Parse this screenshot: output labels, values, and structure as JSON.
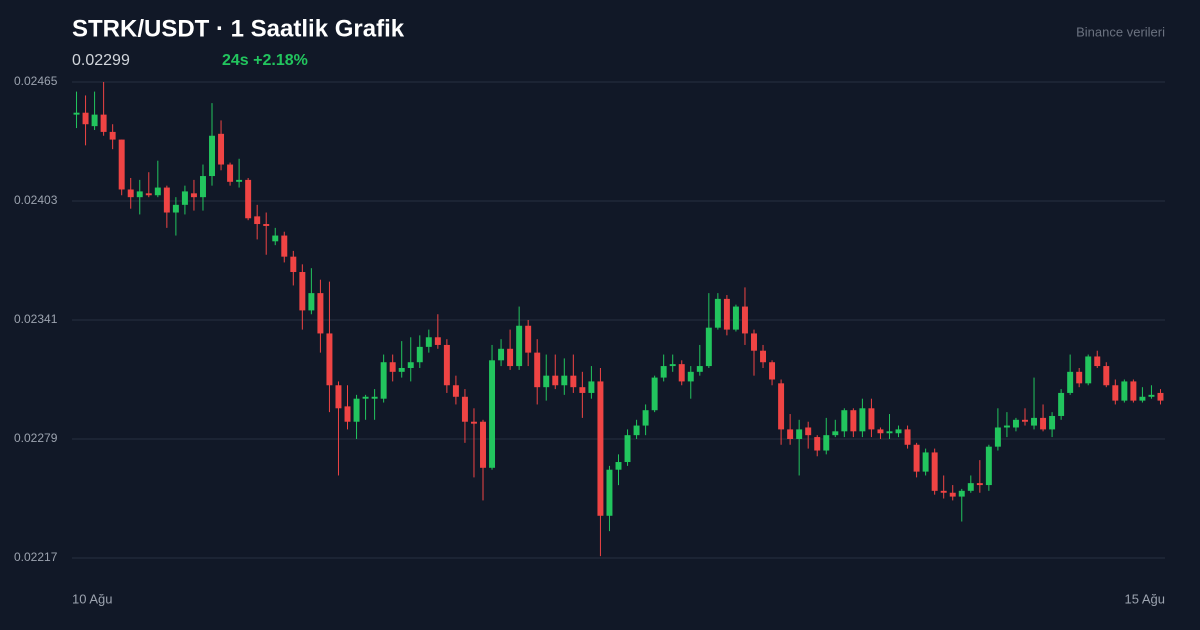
{
  "chart_data": {
    "type": "candlestick",
    "title": "STRK/USDT · 1 Saatlik Grafik",
    "last_price": 0.02299,
    "change_label": "24s +2.18%",
    "source": "Binance verileri",
    "x_labels": [
      "10 Ağu",
      "15 Ağu"
    ],
    "ylim": [
      0.02217,
      0.02465
    ],
    "yticks": [
      0.02465,
      0.02403,
      0.02341,
      0.02279,
      0.02217
    ],
    "grid": true,
    "up_color": "#22c55e",
    "down_color": "#ef4444",
    "open": [
      0.02448,
      0.02449,
      0.02442,
      0.02448,
      0.02439,
      0.02435,
      0.02409,
      0.02405,
      0.02407,
      0.02406,
      0.0241,
      0.02397,
      0.02401,
      0.02407,
      0.02405,
      0.02416,
      0.02438,
      0.02422,
      0.02413,
      0.02414,
      0.02395,
      0.02391,
      0.02382,
      0.02385,
      0.02374,
      0.02366,
      0.02346,
      0.02355,
      0.02334,
      0.02307,
      0.02296,
      0.02288,
      0.023,
      0.023,
      0.023,
      0.02319,
      0.02314,
      0.02316,
      0.02319,
      0.02327,
      0.02332,
      0.02328,
      0.02307,
      0.02301,
      0.02288,
      0.02288,
      0.02264,
      0.0232,
      0.02326,
      0.02317,
      0.02338,
      0.02324,
      0.02306,
      0.02312,
      0.02307,
      0.02312,
      0.02306,
      0.02303,
      0.02309,
      0.02239,
      0.02263,
      0.02267,
      0.02281,
      0.02286,
      0.02294,
      0.02311,
      0.02317,
      0.02318,
      0.02309,
      0.02314,
      0.02317,
      0.02337,
      0.02352,
      0.02336,
      0.02348,
      0.02334,
      0.02325,
      0.02319,
      0.02308,
      0.02284,
      0.02279,
      0.02285,
      0.0228,
      0.02273,
      0.02281,
      0.02283,
      0.02294,
      0.02283,
      0.02295,
      0.02284,
      0.02282,
      0.02282,
      0.02284,
      0.02276,
      0.02262,
      0.02272,
      0.02252,
      0.02251,
      0.02249,
      0.02252,
      0.02256,
      0.02255,
      0.02275,
      0.02285,
      0.02285,
      0.02289,
      0.02286,
      0.0229,
      0.02284,
      0.02291,
      0.02303,
      0.02314,
      0.02308,
      0.02322,
      0.02317,
      0.02307,
      0.02299,
      0.02309,
      0.02299,
      0.02301,
      0.02303
    ],
    "high": [
      0.0246,
      0.02458,
      0.0246,
      0.02465,
      0.02443,
      0.02435,
      0.02415,
      0.02414,
      0.02418,
      0.02424,
      0.02411,
      0.02405,
      0.02411,
      0.02414,
      0.02422,
      0.02454,
      0.02445,
      0.02423,
      0.02425,
      0.02415,
      0.02401,
      0.02397,
      0.02389,
      0.02387,
      0.02377,
      0.0237,
      0.02368,
      0.02362,
      0.02361,
      0.02309,
      0.02307,
      0.02302,
      0.02302,
      0.02305,
      0.02323,
      0.02323,
      0.0233,
      0.02332,
      0.02333,
      0.02336,
      0.02344,
      0.02331,
      0.02312,
      0.02305,
      0.02295,
      0.02289,
      0.02328,
      0.02331,
      0.02336,
      0.02348,
      0.02341,
      0.02331,
      0.02323,
      0.02323,
      0.02321,
      0.02323,
      0.02314,
      0.02317,
      0.02316,
      0.02265,
      0.02271,
      0.02284,
      0.02289,
      0.02297,
      0.02312,
      0.02323,
      0.02323,
      0.0232,
      0.02317,
      0.02328,
      0.02355,
      0.02355,
      0.02354,
      0.02349,
      0.02358,
      0.02336,
      0.02328,
      0.0232,
      0.0231,
      0.02292,
      0.02289,
      0.02288,
      0.02281,
      0.0229,
      0.02289,
      0.02295,
      0.02295,
      0.023,
      0.023,
      0.02285,
      0.02292,
      0.02286,
      0.02286,
      0.02277,
      0.02274,
      0.02274,
      0.0226,
      0.02255,
      0.02253,
      0.0226,
      0.02268,
      0.02276,
      0.02295,
      0.02293,
      0.0229,
      0.02295,
      0.02311,
      0.02297,
      0.02293,
      0.02305,
      0.02323,
      0.02316,
      0.02323,
      0.02325,
      0.02319,
      0.0231,
      0.0231,
      0.0231,
      0.02306,
      0.02307,
      0.02305
    ],
    "low": [
      0.02441,
      0.02432,
      0.0244,
      0.02437,
      0.0243,
      0.02406,
      0.02399,
      0.02396,
      0.02405,
      0.02405,
      0.02389,
      0.02385,
      0.02396,
      0.02398,
      0.02398,
      0.02411,
      0.02419,
      0.02411,
      0.0241,
      0.02393,
      0.02383,
      0.02375,
      0.0238,
      0.02371,
      0.02359,
      0.02336,
      0.02344,
      0.02324,
      0.02293,
      0.0226,
      0.02284,
      0.02279,
      0.02289,
      0.02289,
      0.02298,
      0.02309,
      0.02311,
      0.02309,
      0.02316,
      0.02324,
      0.02326,
      0.02303,
      0.02297,
      0.02277,
      0.02259,
      0.02247,
      0.02263,
      0.02317,
      0.02315,
      0.02315,
      0.02317,
      0.02297,
      0.02299,
      0.02305,
      0.02302,
      0.02303,
      0.0229,
      0.023,
      0.02218,
      0.02231,
      0.02255,
      0.02265,
      0.02279,
      0.02281,
      0.02293,
      0.02309,
      0.02314,
      0.02307,
      0.023,
      0.02312,
      0.02316,
      0.02336,
      0.02333,
      0.02335,
      0.02328,
      0.02312,
      0.02316,
      0.02307,
      0.02276,
      0.02276,
      0.0226,
      0.02274,
      0.0227,
      0.02271,
      0.0228,
      0.0228,
      0.0228,
      0.0228,
      0.0228,
      0.02279,
      0.02279,
      0.0228,
      0.02274,
      0.02259,
      0.0226,
      0.0225,
      0.02248,
      0.02247,
      0.02236,
      0.02251,
      0.02251,
      0.02252,
      0.02273,
      0.0228,
      0.02283,
      0.02286,
      0.02284,
      0.02283,
      0.0228,
      0.02289,
      0.02302,
      0.02306,
      0.02307,
      0.02316,
      0.02306,
      0.02297,
      0.02298,
      0.02298,
      0.02298,
      0.023,
      0.02297
    ],
    "close": [
      0.02449,
      0.02443,
      0.02448,
      0.02439,
      0.02435,
      0.02409,
      0.02405,
      0.02408,
      0.02406,
      0.0241,
      0.02397,
      0.02401,
      0.02408,
      0.02405,
      0.02416,
      0.02437,
      0.02422,
      0.02413,
      0.02414,
      0.02394,
      0.02391,
      0.0239,
      0.02385,
      0.02374,
      0.02366,
      0.02346,
      0.02355,
      0.02334,
      0.02307,
      0.02295,
      0.02288,
      0.023,
      0.02301,
      0.02301,
      0.02319,
      0.02314,
      0.02316,
      0.02319,
      0.02327,
      0.02332,
      0.02328,
      0.02307,
      0.02301,
      0.02288,
      0.02287,
      0.02264,
      0.0232,
      0.02326,
      0.02317,
      0.02338,
      0.02324,
      0.02306,
      0.02312,
      0.02307,
      0.02312,
      0.02306,
      0.02303,
      0.02309,
      0.02239,
      0.02263,
      0.02267,
      0.02281,
      0.02286,
      0.02294,
      0.02311,
      0.02317,
      0.02318,
      0.02309,
      0.02314,
      0.02317,
      0.02337,
      0.02352,
      0.02336,
      0.02348,
      0.02334,
      0.02325,
      0.02319,
      0.0231,
      0.02284,
      0.02279,
      0.02284,
      0.02281,
      0.02273,
      0.02281,
      0.02283,
      0.02294,
      0.02283,
      0.02295,
      0.02284,
      0.02282,
      0.02283,
      0.02284,
      0.02276,
      0.02262,
      0.02272,
      0.02252,
      0.02251,
      0.02249,
      0.02252,
      0.02256,
      0.02255,
      0.02275,
      0.02285,
      0.02286,
      0.02289,
      0.02288,
      0.0229,
      0.02284,
      0.02291,
      0.02303,
      0.02314,
      0.02308,
      0.02322,
      0.02317,
      0.02307,
      0.02299,
      0.02309,
      0.02299,
      0.02301,
      0.02302,
      0.02299
    ]
  }
}
